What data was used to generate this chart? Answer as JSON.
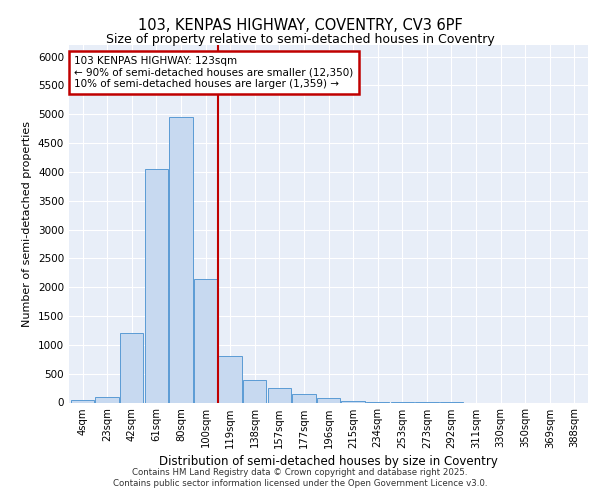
{
  "title_line1": "103, KENPAS HIGHWAY, COVENTRY, CV3 6PF",
  "title_line2": "Size of property relative to semi-detached houses in Coventry",
  "xlabel": "Distribution of semi-detached houses by size in Coventry",
  "ylabel": "Number of semi-detached properties",
  "categories": [
    "4sqm",
    "23sqm",
    "42sqm",
    "61sqm",
    "80sqm",
    "100sqm",
    "119sqm",
    "138sqm",
    "157sqm",
    "177sqm",
    "196sqm",
    "215sqm",
    "234sqm",
    "253sqm",
    "273sqm",
    "292sqm",
    "311sqm",
    "330sqm",
    "350sqm",
    "369sqm",
    "388sqm"
  ],
  "bar_heights": [
    50,
    95,
    1200,
    4050,
    4950,
    2150,
    800,
    390,
    245,
    150,
    80,
    30,
    10,
    5,
    2,
    1,
    0,
    0,
    0,
    0,
    0
  ],
  "bar_color": "#c7d9f0",
  "bar_edge_color": "#5b9bd5",
  "vline_x": 5.5,
  "vline_color": "#c00000",
  "annotation_text": "103 KENPAS HIGHWAY: 123sqm\n← 90% of semi-detached houses are smaller (12,350)\n10% of semi-detached houses are larger (1,359) →",
  "annotation_box_color": "#c00000",
  "ylim": [
    0,
    6200
  ],
  "yticks": [
    0,
    500,
    1000,
    1500,
    2000,
    2500,
    3000,
    3500,
    4000,
    4500,
    5000,
    5500,
    6000
  ],
  "footer_line1": "Contains HM Land Registry data © Crown copyright and database right 2025.",
  "footer_line2": "Contains public sector information licensed under the Open Government Licence v3.0.",
  "plot_bg_color": "#e8eef8"
}
